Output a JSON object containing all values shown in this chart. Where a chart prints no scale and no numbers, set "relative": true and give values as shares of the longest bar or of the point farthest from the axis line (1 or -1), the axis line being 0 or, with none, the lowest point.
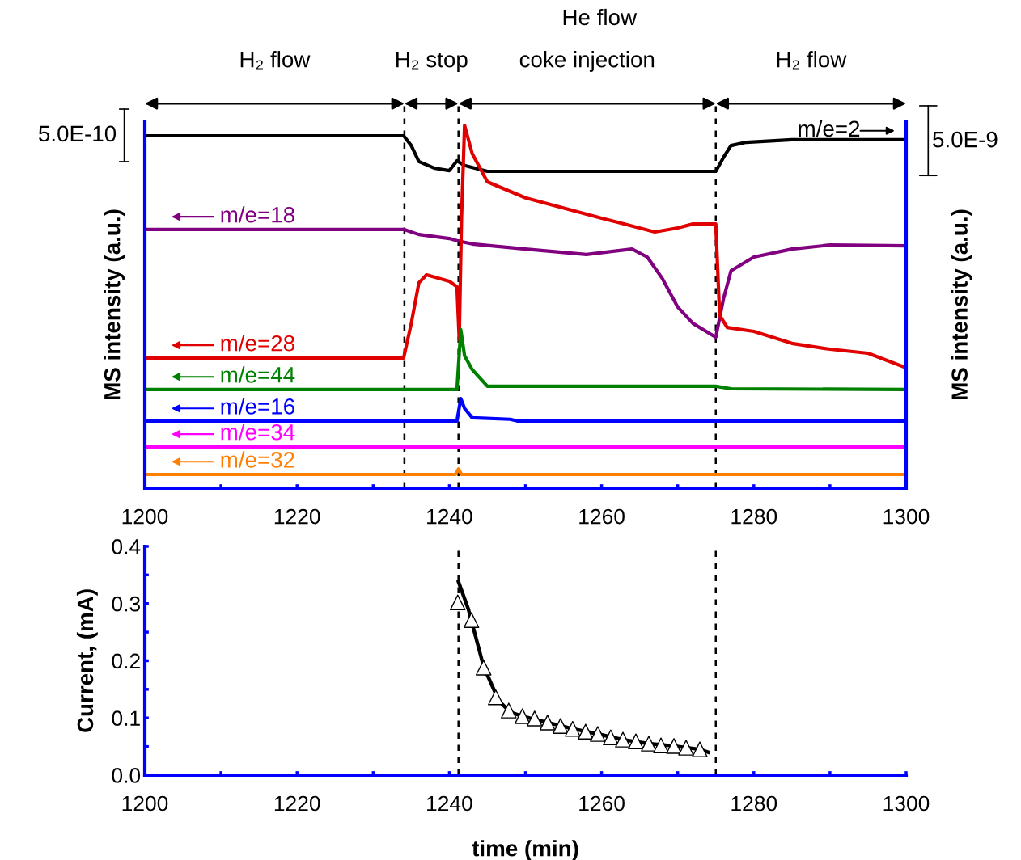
{
  "chart_data": [
    {
      "type": "line",
      "relative": true,
      "ylabel": "MS intensity (a.u.)",
      "y2label": "MS intensity (a.u.)",
      "annotations": [
        "He flow",
        "5.0E-10",
        "5.0E-9",
        "H₂ flow",
        "H₂ stop",
        "coke injection",
        "H₂ flow"
      ],
      "xlim": [
        1200,
        1300
      ],
      "xticks": [
        1200,
        {
          "value": 1210,
          "label": null
        },
        1220,
        {
          "value": 1230,
          "label": null
        },
        1240,
        {
          "value": 1250,
          "label": null
        },
        1260,
        {
          "value": 1270,
          "label": null
        },
        1280,
        {
          "value": 1290,
          "label": null
        },
        1300
      ],
      "grid": false,
      "legend": "left",
      "marker": "none",
      "line_style": "solid",
      "ref_lines": [
        {
          "axis": "x",
          "value": 1234.1,
          "color": "#000000",
          "line_style": "dashed"
        },
        {
          "axis": "x",
          "value": 1241.2,
          "color": "#000000",
          "line_style": "dashed"
        },
        {
          "axis": "x",
          "value": 1275,
          "color": "#000000",
          "line_style": "dashed"
        }
      ],
      "series": [
        {
          "name": "m/e=2",
          "color": "#000000",
          "x": [
            1200,
            1234,
            1235,
            1236,
            1238,
            1240,
            1241,
            1242,
            1245,
            1275,
            1276,
            1277,
            1279,
            1285,
            1300
          ],
          "values": [
            0.971,
            0.971,
            0.944,
            0.9,
            0.882,
            0.875,
            0.902,
            0.889,
            0.873,
            0.873,
            0.911,
            0.944,
            0.953,
            0.96,
            0.96
          ]
        },
        {
          "name": "m/e=18",
          "color": "#800080",
          "x": [
            1200,
            1234,
            1236,
            1240,
            1241,
            1243,
            1250,
            1258,
            1264,
            1266,
            1268,
            1270,
            1272,
            1275,
            1276,
            1277,
            1280,
            1285,
            1290,
            1300
          ],
          "values": [
            0.713,
            0.713,
            0.699,
            0.688,
            0.682,
            0.673,
            0.659,
            0.644,
            0.659,
            0.637,
            0.577,
            0.499,
            0.454,
            0.416,
            0.521,
            0.599,
            0.637,
            0.659,
            0.67,
            0.668
          ]
        },
        {
          "name": "m/e=28",
          "color": "#e00000",
          "x": [
            1200,
            1234,
            1235,
            1236,
            1237,
            1240,
            1241,
            1241.3,
            1241.6,
            1242,
            1243,
            1245,
            1250,
            1260,
            1267,
            1270,
            1272,
            1275,
            1275.5,
            1276.5,
            1280,
            1285,
            1290,
            1295,
            1300
          ],
          "values": [
            0.359,
            0.359,
            0.454,
            0.566,
            0.588,
            0.57,
            0.555,
            0.41,
            0.744,
            1.0,
            0.922,
            0.844,
            0.8,
            0.744,
            0.706,
            0.717,
            0.728,
            0.728,
            0.477,
            0.443,
            0.432,
            0.399,
            0.383,
            0.372,
            0.332
          ]
        },
        {
          "name": "m/e=44",
          "color": "#008000",
          "x": [
            1200,
            1241,
            1241.5,
            1242,
            1243,
            1245,
            1275,
            1277,
            1300
          ],
          "values": [
            0.272,
            0.272,
            0.437,
            0.365,
            0.327,
            0.281,
            0.281,
            0.274,
            0.272
          ]
        },
        {
          "name": "m/e=16",
          "color": "#0000ff",
          "x": [
            1200,
            1241,
            1241.5,
            1242,
            1243,
            1248,
            1249,
            1300
          ],
          "values": [
            0.185,
            0.185,
            0.247,
            0.22,
            0.194,
            0.19,
            0.185,
            0.185
          ]
        },
        {
          "name": "m/e=34",
          "color": "#ff00ff",
          "x": [
            1200,
            1300
          ],
          "values": [
            0.114,
            0.114
          ]
        },
        {
          "name": "m/e=32",
          "color": "#ff8000",
          "x": [
            1200,
            1240.8,
            1241.2,
            1241.6,
            1300
          ],
          "values": [
            0.038,
            0.038,
            0.053,
            0.038,
            0.038
          ]
        }
      ]
    },
    {
      "type": "line",
      "xlabel": "time (min)",
      "ylabel": "Current, (mA)",
      "xlim": [
        1200,
        1300
      ],
      "ylim": [
        0,
        0.4
      ],
      "xticks": [
        1200,
        {
          "value": 1210,
          "label": null
        },
        1220,
        {
          "value": 1230,
          "label": null
        },
        1240,
        {
          "value": 1250,
          "label": null
        },
        1260,
        {
          "value": 1270,
          "label": null
        },
        1280,
        {
          "value": 1290,
          "label": null
        },
        1300
      ],
      "yticks": [
        {
          "value": 0,
          "label": "0.0"
        },
        {
          "value": 0.05,
          "label": null
        },
        0.1,
        {
          "value": 0.15,
          "label": null
        },
        0.2,
        {
          "value": 0.25,
          "label": null
        },
        0.3,
        {
          "value": 0.35,
          "label": null
        },
        0.4
      ],
      "grid": false,
      "ref_lines": [
        {
          "axis": "x",
          "value": 1241.2,
          "color": "#000000",
          "line_style": "dashed"
        },
        {
          "axis": "x",
          "value": 1275,
          "color": "#000000",
          "line_style": "dashed"
        }
      ],
      "series": [
        {
          "type": "line",
          "color": "#000000",
          "marker": "none",
          "x": [
            1241.2,
            1242.5,
            1244.5,
            1246.5,
            1248,
            1249.6,
            1252.9,
            1256.2,
            1259.5,
            1262.8,
            1266.2,
            1269.5,
            1272.9,
            1274
          ],
          "values": [
            0.338,
            0.29,
            0.19,
            0.13,
            0.11,
            0.103,
            0.092,
            0.081,
            0.072,
            0.062,
            0.055,
            0.051,
            0.045,
            0.04
          ]
        },
        {
          "type": "scatter",
          "color": "#000000",
          "marker": "triangle",
          "x": [
            1241.1,
            1242.9,
            1244.5,
            1246.1,
            1247.8,
            1249.6,
            1251.2,
            1252.9,
            1254.6,
            1256.2,
            1257.9,
            1259.5,
            1261.2,
            1262.8,
            1264.5,
            1266.2,
            1267.8,
            1269.5,
            1271.1,
            1272.9
          ],
          "values": [
            0.302,
            0.271,
            0.188,
            0.136,
            0.113,
            0.103,
            0.099,
            0.092,
            0.086,
            0.081,
            0.076,
            0.072,
            0.066,
            0.062,
            0.059,
            0.055,
            0.052,
            0.051,
            0.048,
            0.045
          ]
        }
      ]
    }
  ]
}
